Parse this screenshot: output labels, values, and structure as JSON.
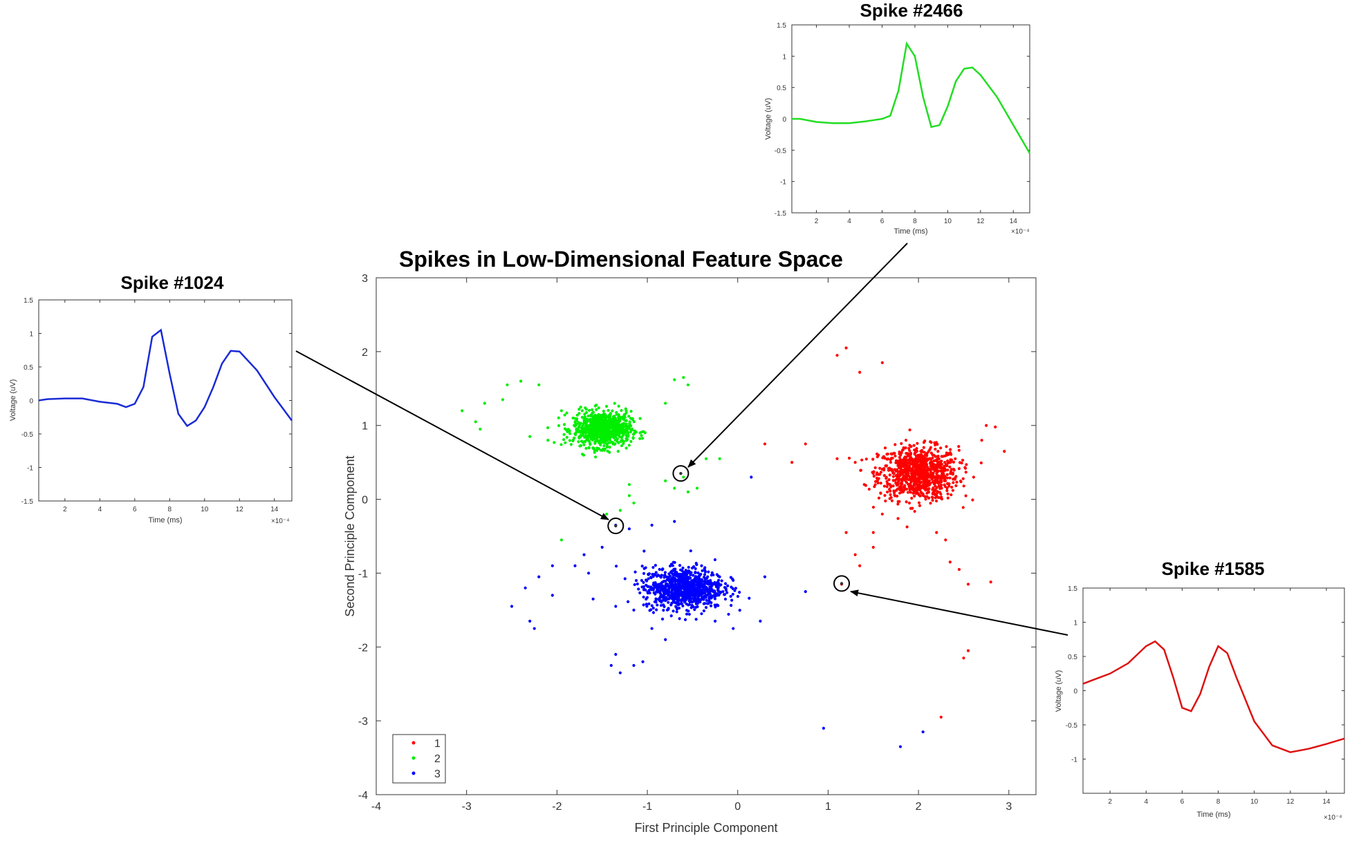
{
  "chart_data": [
    {
      "type": "scatter",
      "title": "Spikes in Low-Dimensional Feature Space",
      "xlabel": "First Principle Component",
      "ylabel": "Second Principle Component",
      "xlim": [
        -4,
        3.3
      ],
      "ylim": [
        -4,
        3
      ],
      "xticks": [
        -4,
        -3,
        -2,
        -1,
        0,
        1,
        2,
        3
      ],
      "yticks": [
        -4,
        -3,
        -2,
        -1,
        0,
        1,
        2,
        3
      ],
      "grid": false,
      "legend": "bottom-left",
      "series": [
        {
          "name": "1",
          "color": "#ff0000",
          "center": [
            2.0,
            0.35
          ],
          "spread": [
            0.22,
            0.18
          ],
          "core_count": 900,
          "outliers": [
            [
              1.1,
              1.95
            ],
            [
              1.2,
              2.05
            ],
            [
              1.35,
              1.72
            ],
            [
              1.6,
              1.85
            ],
            [
              0.3,
              0.75
            ],
            [
              0.75,
              0.75
            ],
            [
              0.6,
              0.5
            ],
            [
              1.1,
              0.55
            ],
            [
              1.3,
              0.5
            ],
            [
              1.5,
              0.35
            ],
            [
              1.4,
              0.2
            ],
            [
              1.6,
              -0.2
            ],
            [
              1.5,
              -0.45
            ],
            [
              1.2,
              -0.45
            ],
            [
              1.5,
              -0.65
            ],
            [
              1.3,
              -0.75
            ],
            [
              1.35,
              -0.9
            ],
            [
              2.7,
              0.8
            ],
            [
              2.95,
              0.65
            ],
            [
              2.75,
              1.0
            ],
            [
              2.85,
              0.98
            ],
            [
              2.2,
              -0.45
            ],
            [
              2.3,
              -0.55
            ],
            [
              2.35,
              -0.85
            ],
            [
              2.45,
              -0.95
            ],
            [
              2.55,
              -1.15
            ],
            [
              2.8,
              -1.12
            ],
            [
              2.5,
              -2.15
            ],
            [
              2.55,
              -2.05
            ],
            [
              2.25,
              -2.95
            ],
            [
              1.15,
              -1.15
            ]
          ]
        },
        {
          "name": "2",
          "color": "#00ee00",
          "center": [
            -1.5,
            0.95
          ],
          "spread": [
            0.16,
            0.12
          ],
          "core_count": 800,
          "outliers": [
            [
              -2.4,
              1.6
            ],
            [
              -2.55,
              1.55
            ],
            [
              -2.2,
              1.55
            ],
            [
              -2.8,
              1.3
            ],
            [
              -2.6,
              1.35
            ],
            [
              -3.05,
              1.2
            ],
            [
              -2.9,
              1.05
            ],
            [
              -2.85,
              0.95
            ],
            [
              -2.3,
              0.85
            ],
            [
              -2.1,
              0.8
            ],
            [
              -1.95,
              1.2
            ],
            [
              -1.8,
              1.05
            ],
            [
              -0.6,
              1.65
            ],
            [
              -0.7,
              1.62
            ],
            [
              -0.55,
              1.55
            ],
            [
              -0.8,
              1.3
            ],
            [
              -0.2,
              0.55
            ],
            [
              -0.35,
              0.55
            ],
            [
              -0.6,
              0.3
            ],
            [
              -0.8,
              0.25
            ],
            [
              -0.7,
              0.15
            ],
            [
              -0.55,
              0.1
            ],
            [
              -0.45,
              0.15
            ],
            [
              -1.2,
              0.05
            ],
            [
              -1.3,
              -0.15
            ],
            [
              -1.15,
              -0.05
            ],
            [
              -1.45,
              -0.2
            ],
            [
              -1.95,
              -0.55
            ],
            [
              -1.2,
              0.2
            ]
          ]
        },
        {
          "name": "3",
          "color": "#0000ff",
          "center": [
            -0.6,
            -1.2
          ],
          "spread": [
            0.22,
            0.14
          ],
          "core_count": 900,
          "outliers": [
            [
              -1.35,
              -0.35
            ],
            [
              -1.2,
              -0.4
            ],
            [
              -0.95,
              -0.35
            ],
            [
              -0.7,
              -0.3
            ],
            [
              -1.5,
              -0.65
            ],
            [
              -1.7,
              -0.75
            ],
            [
              -1.8,
              -0.9
            ],
            [
              -1.65,
              -1.0
            ],
            [
              -2.05,
              -0.9
            ],
            [
              -2.2,
              -1.05
            ],
            [
              -2.35,
              -1.2
            ],
            [
              -2.05,
              -1.3
            ],
            [
              -2.5,
              -1.45
            ],
            [
              -2.3,
              -1.65
            ],
            [
              -2.25,
              -1.75
            ],
            [
              -1.6,
              -1.35
            ],
            [
              -1.35,
              -1.45
            ],
            [
              -1.15,
              -1.5
            ],
            [
              -0.95,
              -1.75
            ],
            [
              -0.8,
              -1.9
            ],
            [
              -0.4,
              -1.55
            ],
            [
              -0.25,
              -1.65
            ],
            [
              -0.05,
              -1.75
            ],
            [
              0.25,
              -1.65
            ],
            [
              0.3,
              -1.05
            ],
            [
              0.75,
              -1.25
            ],
            [
              -1.35,
              -2.1
            ],
            [
              -1.4,
              -2.25
            ],
            [
              -1.3,
              -2.35
            ],
            [
              -1.05,
              -2.2
            ],
            [
              -1.15,
              -2.25
            ],
            [
              0.15,
              0.3
            ],
            [
              0.95,
              -3.1
            ],
            [
              1.8,
              -3.35
            ],
            [
              2.05,
              -3.15
            ],
            [
              -0.4,
              -0.9
            ],
            [
              -0.2,
              -1.05
            ]
          ]
        }
      ],
      "annotations": [
        {
          "label": "Spike #2466",
          "point": [
            -0.63,
            0.35
          ]
        },
        {
          "label": "Spike #1024",
          "point": [
            -1.35,
            -0.36
          ]
        },
        {
          "label": "Spike #1585",
          "point": [
            1.15,
            -1.14
          ]
        }
      ]
    },
    {
      "type": "line",
      "title": "Spike #2466",
      "xlabel": "Time (ms)",
      "ylabel": "Voltage (uV)",
      "x_multiplier": "×10⁻⁴",
      "xlim": [
        0.5,
        15
      ],
      "ylim": [
        -1.5,
        1.5
      ],
      "xticks": [
        2,
        4,
        6,
        8,
        10,
        12,
        14
      ],
      "yticks": [
        -1.5,
        -1,
        -0.5,
        0,
        0.5,
        1,
        1.5
      ],
      "color": "#22dd22",
      "x": [
        0.5,
        1,
        2,
        3,
        4,
        5,
        5.5,
        6,
        6.5,
        7,
        7.5,
        8,
        8.5,
        9,
        9.5,
        10,
        10.5,
        11,
        11.5,
        12,
        13,
        14,
        15
      ],
      "y": [
        0.0,
        0.0,
        -0.05,
        -0.07,
        -0.07,
        -0.04,
        -0.02,
        0.0,
        0.05,
        0.45,
        1.2,
        1.0,
        0.35,
        -0.13,
        -0.1,
        0.2,
        0.6,
        0.8,
        0.82,
        0.7,
        0.35,
        -0.1,
        -0.55
      ]
    },
    {
      "type": "line",
      "title": "Spike #1024",
      "xlabel": "Time (ms)",
      "ylabel": "Voltage (uV)",
      "x_multiplier": "×10⁻⁴",
      "xlim": [
        0.5,
        15
      ],
      "ylim": [
        -1.5,
        1.5
      ],
      "xticks": [
        2,
        4,
        6,
        8,
        10,
        12,
        14
      ],
      "yticks": [
        -1.5,
        -1,
        -0.5,
        0,
        0.5,
        1,
        1.5
      ],
      "color": "#1a2bd6",
      "x": [
        0.5,
        1,
        2,
        3,
        4,
        5,
        5.5,
        6,
        6.5,
        7,
        7.5,
        8,
        8.5,
        9,
        9.5,
        10,
        10.5,
        11,
        11.5,
        12,
        13,
        14,
        15
      ],
      "y": [
        0.0,
        0.02,
        0.03,
        0.03,
        -0.02,
        -0.05,
        -0.1,
        -0.05,
        0.2,
        0.95,
        1.05,
        0.4,
        -0.2,
        -0.38,
        -0.3,
        -0.1,
        0.2,
        0.55,
        0.74,
        0.73,
        0.45,
        0.05,
        -0.3
      ]
    },
    {
      "type": "line",
      "title": "Spike #1585",
      "xlabel": "Time (ms)",
      "ylabel": "Voltage (uV)",
      "x_multiplier": "×10⁻⁴",
      "xlim": [
        0.5,
        15
      ],
      "ylim": [
        -1.5,
        1.5
      ],
      "xticks": [
        2,
        4,
        6,
        8,
        10,
        12,
        14
      ],
      "yticks": [
        -1,
        -0.5,
        0,
        0.5,
        1,
        1.5
      ],
      "color": "#dd1111",
      "x": [
        0.5,
        1,
        2,
        3,
        4,
        4.5,
        5,
        5.5,
        6,
        6.5,
        7,
        7.5,
        8,
        8.5,
        9,
        10,
        11,
        12,
        13,
        14,
        15
      ],
      "y": [
        0.1,
        0.15,
        0.25,
        0.4,
        0.65,
        0.72,
        0.6,
        0.2,
        -0.25,
        -0.3,
        -0.05,
        0.35,
        0.65,
        0.55,
        0.2,
        -0.45,
        -0.8,
        -0.9,
        -0.85,
        -0.78,
        -0.7
      ]
    }
  ]
}
